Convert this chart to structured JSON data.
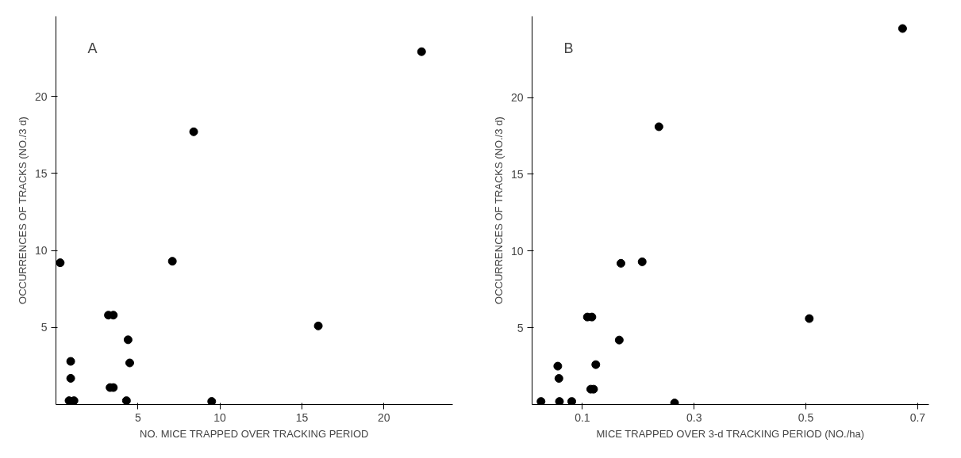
{
  "chart_data": [
    {
      "type": "scatter",
      "annotations": [
        "A"
      ],
      "xlabel": "NO. MICE TRAPPED OVER TRACKING PERIOD",
      "ylabel": "OCCURRENCES OF TRACKS (NO./3 d)",
      "series": [
        {
          "color": "#000000",
          "x": [
            22.3,
            8.4,
            0.26,
            7.1,
            3.2,
            3.5,
            16.0,
            4.4,
            4.5,
            0.9,
            0.9,
            3.3,
            3.5,
            0.8,
            1.1,
            4.3,
            9.5
          ],
          "values": [
            22.9,
            17.7,
            9.2,
            9.3,
            5.8,
            5.8,
            5.1,
            4.2,
            2.7,
            2.8,
            1.7,
            1.1,
            1.1,
            0.25,
            0.25,
            0.25,
            0.2
          ]
        }
      ],
      "xlim": [
        0,
        24.2
      ],
      "ylim": [
        0,
        25.2
      ],
      "xticks": [
        5,
        10,
        15,
        20
      ],
      "yticks": [
        5,
        10,
        15,
        20
      ],
      "marker": "circle"
    },
    {
      "type": "scatter",
      "annotations": [
        "B"
      ],
      "xlabel": "MICE TRAPPED OVER 3-d TRACKING PERIOD (NO./ha)",
      "ylabel": "OCCURRENCES OF TRACKS (NO./3 d)",
      "series": [
        {
          "color": "#000000",
          "x": [
            0.673,
            0.237,
            0.169,
            0.207,
            0.109,
            0.117,
            0.506,
            0.166,
            0.056,
            0.124,
            0.058,
            0.115,
            0.12,
            0.026,
            0.059,
            0.081,
            0.265
          ],
          "values": [
            24.5,
            18.1,
            9.2,
            9.3,
            5.7,
            5.7,
            5.6,
            4.2,
            2.5,
            2.6,
            1.7,
            1.0,
            1.0,
            0.2,
            0.2,
            0.2,
            0.1
          ]
        }
      ],
      "xlim": [
        0.01,
        0.72
      ],
      "ylim": [
        0,
        25.3
      ],
      "xticks": [
        0.1,
        0.3,
        0.5,
        0.7
      ],
      "yticks": [
        5,
        10,
        15,
        20
      ],
      "marker": "circle"
    }
  ]
}
